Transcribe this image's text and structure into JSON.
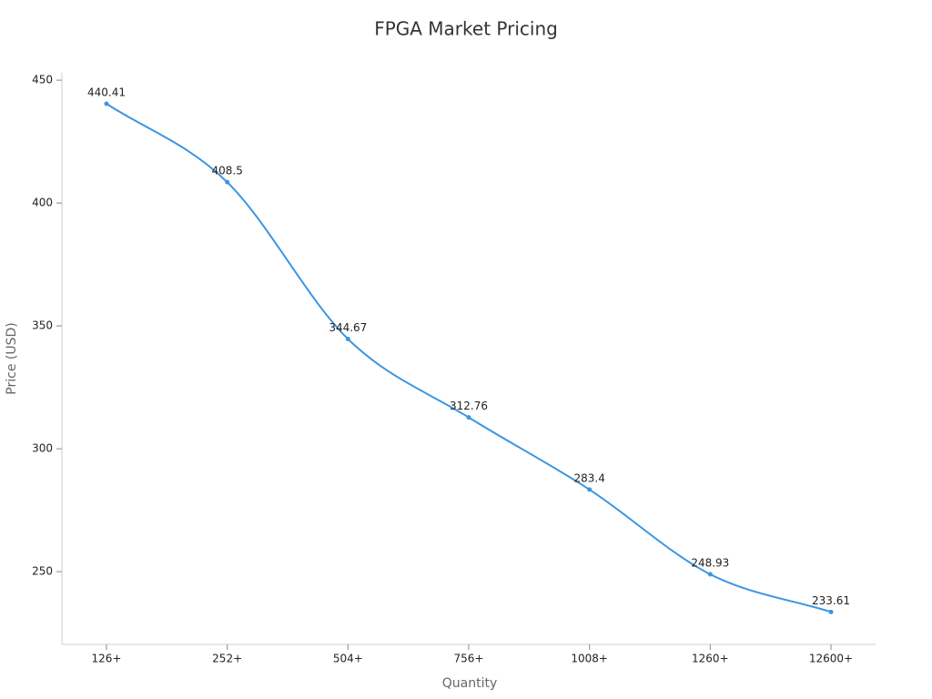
{
  "chart_data": {
    "type": "line",
    "title": "FPGA Market Pricing",
    "x_label": "Quantity",
    "y_label": "Price (USD)",
    "categories": [
      "126+",
      "252+",
      "504+",
      "756+",
      "1008+",
      "1260+",
      "12600+"
    ],
    "series": [
      {
        "name": "Price",
        "color": "#3a95e2",
        "values": [
          440.41,
          408.5,
          344.67,
          312.76,
          283.4,
          248.93,
          233.61
        ]
      }
    ],
    "ylim": [
      220.4,
      453
    ],
    "yticks": [
      250,
      300,
      350,
      400,
      450
    ],
    "grid": false,
    "smooth": true,
    "data_labels": true
  }
}
